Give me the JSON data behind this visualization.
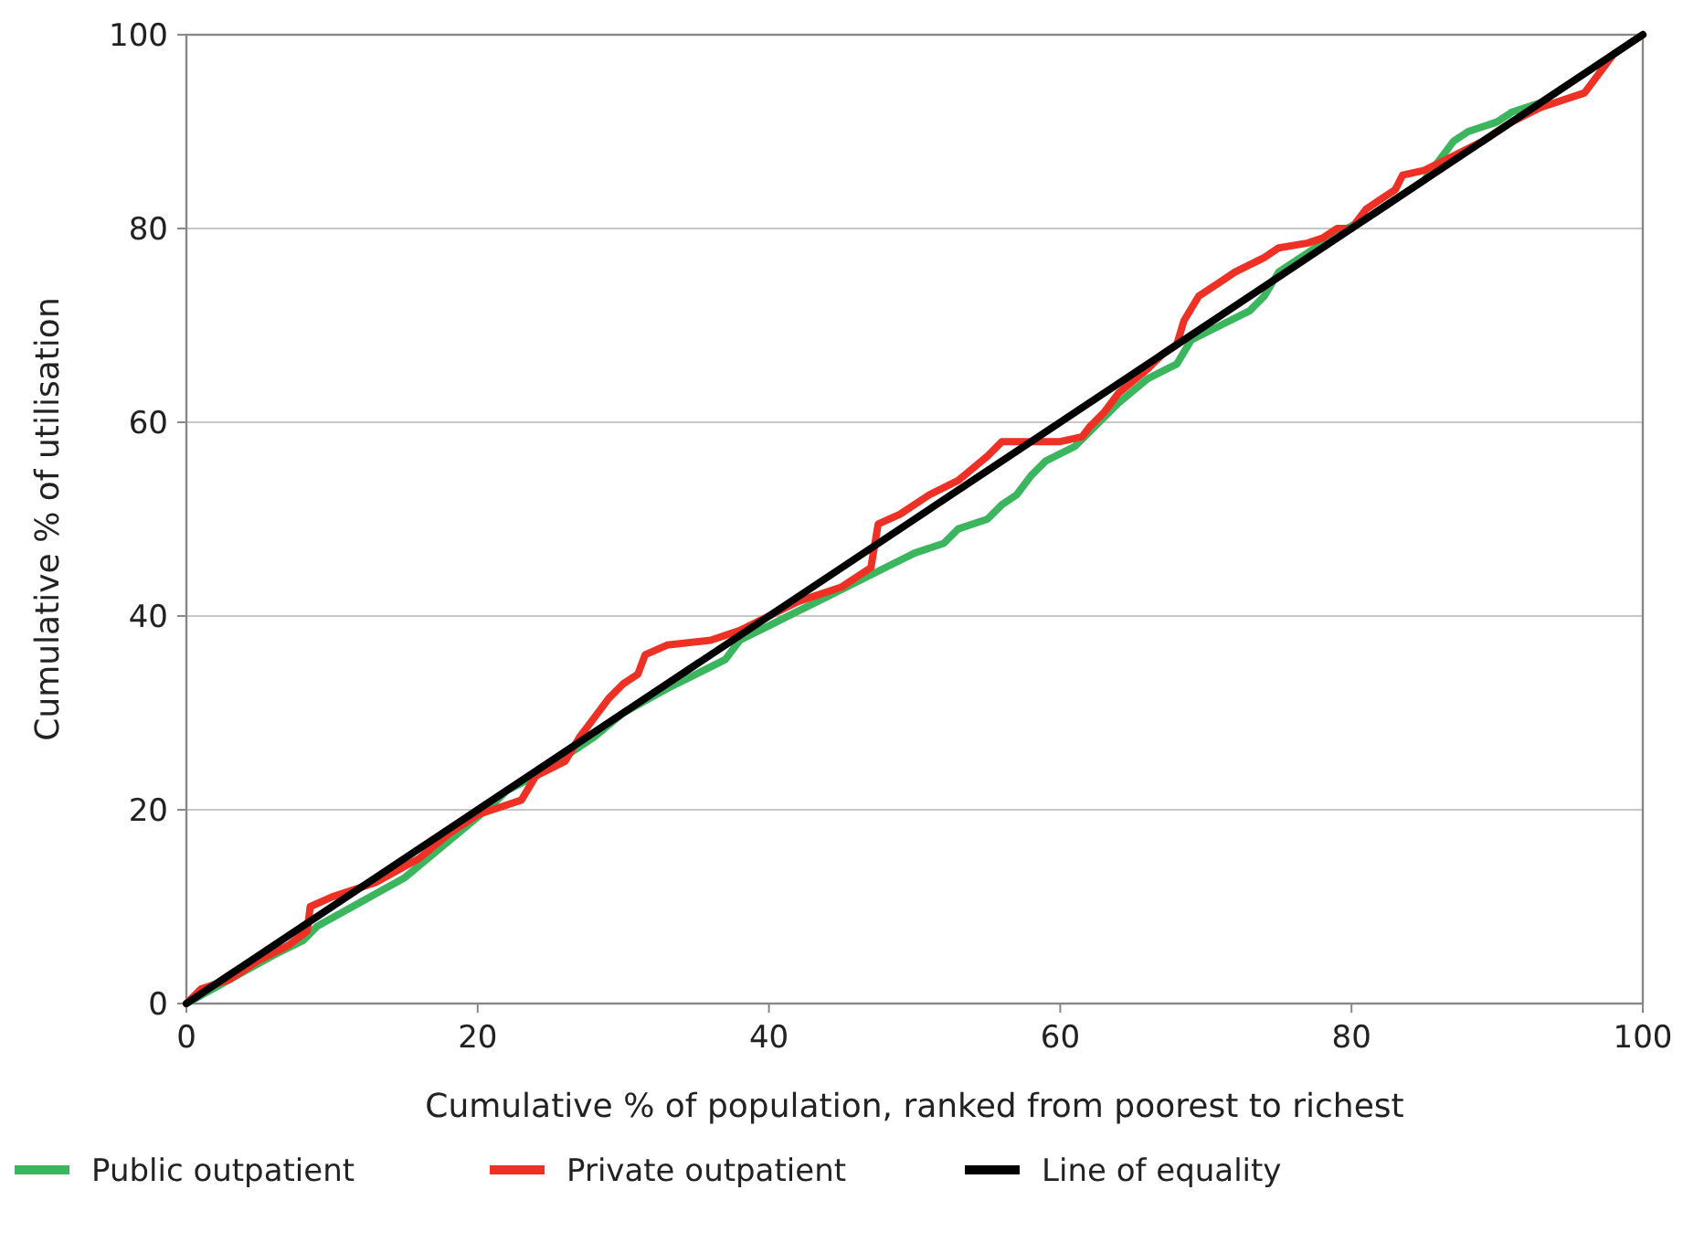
{
  "chart_data": {
    "type": "line",
    "xlabel": "Cumulative % of population, ranked from poorest to richest",
    "ylabel": "Cumulative % of utilisation",
    "xlim": [
      0,
      100
    ],
    "ylim": [
      0,
      100
    ],
    "xticks": [
      0,
      20,
      40,
      60,
      80,
      100
    ],
    "yticks": [
      0,
      20,
      40,
      60,
      80,
      100
    ],
    "grid": "y",
    "legend": "bottom",
    "marker": "none",
    "line_style": "solid",
    "series": [
      {
        "name": "Public outpatient",
        "color": "#3cb55f",
        "x": [
          0,
          3,
          6,
          8,
          9,
          12,
          15,
          17,
          19,
          21,
          22,
          24,
          26,
          28,
          30,
          33,
          35,
          37,
          38,
          40,
          42,
          44,
          46,
          48,
          50,
          52,
          53,
          55,
          56,
          57,
          58,
          59,
          61,
          62,
          64,
          66,
          68,
          69,
          71,
          73,
          74,
          75,
          77,
          79,
          81,
          83,
          85,
          86,
          87,
          88,
          90,
          91,
          93,
          95,
          97,
          99,
          100
        ],
        "values": [
          0,
          2.5,
          5,
          6.5,
          8,
          10.5,
          13,
          15.5,
          18,
          20.5,
          22,
          23.5,
          25.5,
          27.5,
          30,
          32.5,
          34,
          35.5,
          37.5,
          39,
          40.5,
          42,
          43.5,
          45,
          46.5,
          47.5,
          49,
          50,
          51.5,
          52.5,
          54.5,
          56,
          57.5,
          59,
          62,
          64.5,
          66,
          68.5,
          70,
          71.5,
          73,
          75.5,
          77.5,
          79.5,
          81,
          83,
          85,
          87,
          89,
          90,
          91,
          92,
          93,
          95,
          97,
          99,
          100
        ]
      },
      {
        "name": "Private outpatient",
        "color": "#ee3124",
        "x": [
          0,
          1,
          3,
          5,
          7,
          8.3,
          8.5,
          10,
          13,
          16,
          18,
          20,
          22,
          23,
          24,
          26,
          27,
          28,
          29,
          30,
          31,
          31.5,
          33,
          36,
          38,
          40,
          42,
          45,
          47,
          47.5,
          49,
          51,
          53,
          55,
          56,
          60,
          61.5,
          62,
          63,
          64,
          66,
          67,
          68,
          68.5,
          69.5,
          71,
          72,
          74,
          75,
          77,
          78,
          79,
          80,
          81,
          82,
          83,
          83.5,
          85,
          87,
          89,
          91,
          93,
          96,
          97,
          98,
          100
        ],
        "values": [
          0,
          1.5,
          2.5,
          4.5,
          6,
          7.5,
          10,
          11,
          12.5,
          15,
          17.5,
          19.5,
          20.5,
          21,
          23.5,
          25,
          27.5,
          29.5,
          31.5,
          33,
          34,
          36,
          37,
          37.5,
          38.5,
          40,
          41.5,
          43,
          45,
          49.5,
          50.5,
          52.5,
          54,
          56.5,
          58,
          58,
          58.5,
          59.5,
          61,
          63,
          65.5,
          67,
          68,
          70.5,
          73,
          74.5,
          75.5,
          77,
          78,
          78.5,
          79,
          80,
          80,
          82,
          83,
          84,
          85.5,
          86,
          87.5,
          89,
          91,
          92.5,
          94,
          96,
          98,
          100
        ]
      },
      {
        "name": "Line of equality",
        "color": "#000000",
        "x": [
          0,
          100
        ],
        "values": [
          0,
          100
        ]
      }
    ]
  }
}
